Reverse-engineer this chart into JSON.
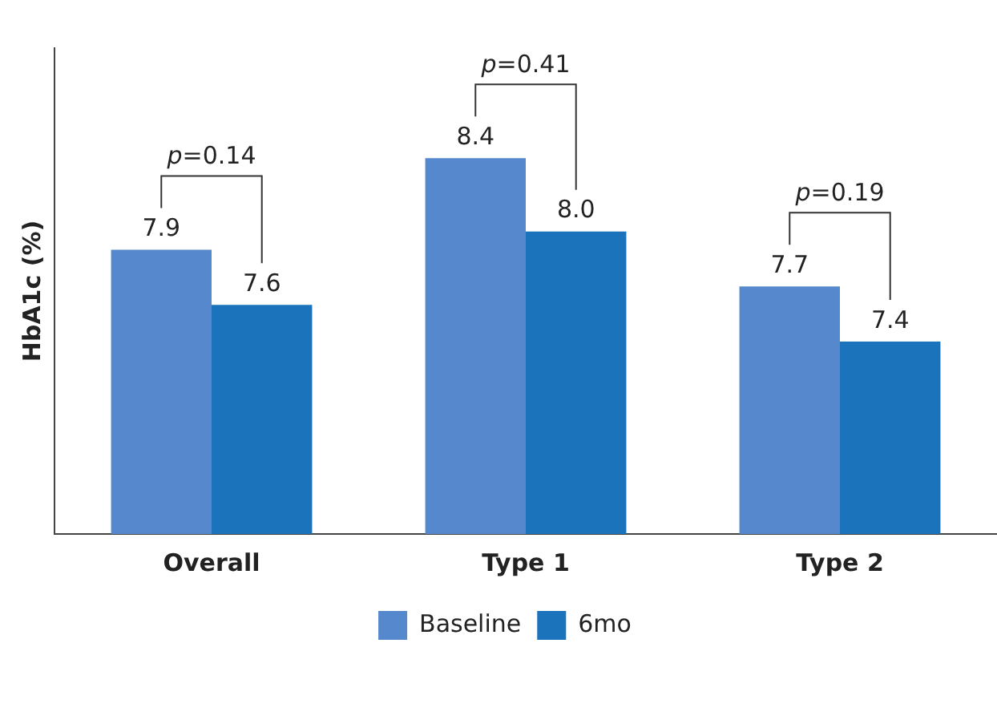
{
  "chart_data": {
    "type": "bar",
    "ylabel": "HbA1c (%)",
    "categories": [
      "Overall",
      "Type 1",
      "Type 2"
    ],
    "series": [
      {
        "name": "Baseline",
        "color": "#5588cc",
        "values": [
          7.9,
          8.4,
          7.7
        ],
        "value_labels": [
          "7.9",
          "8.4",
          "7.7"
        ]
      },
      {
        "name": "6mo",
        "color": "#1a73bb",
        "values": [
          7.6,
          8.0,
          7.4
        ],
        "value_labels": [
          "7.6",
          "8.0",
          "7.4"
        ]
      }
    ],
    "ylim": [
      6.35,
      9.0
    ],
    "tick_labels": "x",
    "grid": false,
    "legend": "bottom",
    "annotations": [
      "p=0.14",
      "p=0.41",
      "p=0.19"
    ]
  }
}
